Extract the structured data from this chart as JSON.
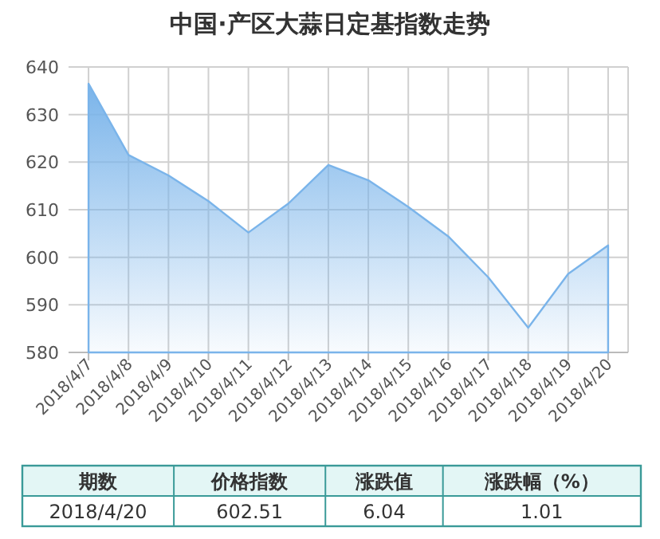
{
  "chart_data": {
    "type": "area",
    "title": "中国·产区大蒜日定基指数走势",
    "categories": [
      "2018/4/7",
      "2018/4/8",
      "2018/4/9",
      "2018/4/10",
      "2018/4/11",
      "2018/4/12",
      "2018/4/13",
      "2018/4/14",
      "2018/4/15",
      "2018/4/16",
      "2018/4/17",
      "2018/4/18",
      "2018/4/19",
      "2018/4/20"
    ],
    "values": [
      636.5,
      621.5,
      617.2,
      611.8,
      605.2,
      611.3,
      619.4,
      616.2,
      610.6,
      604.4,
      595.8,
      585.2,
      596.5,
      602.5
    ],
    "color": "#7ab4ea",
    "ylim": [
      580,
      640
    ],
    "yticks": [
      580,
      590,
      600,
      610,
      620,
      630,
      640
    ],
    "grid": true,
    "annotations": [
      "期数",
      "价格指数",
      "涨跌值",
      "涨跌幅（%）",
      "2018/4/20",
      "602.51",
      "6.04",
      "1.01"
    ]
  }
}
